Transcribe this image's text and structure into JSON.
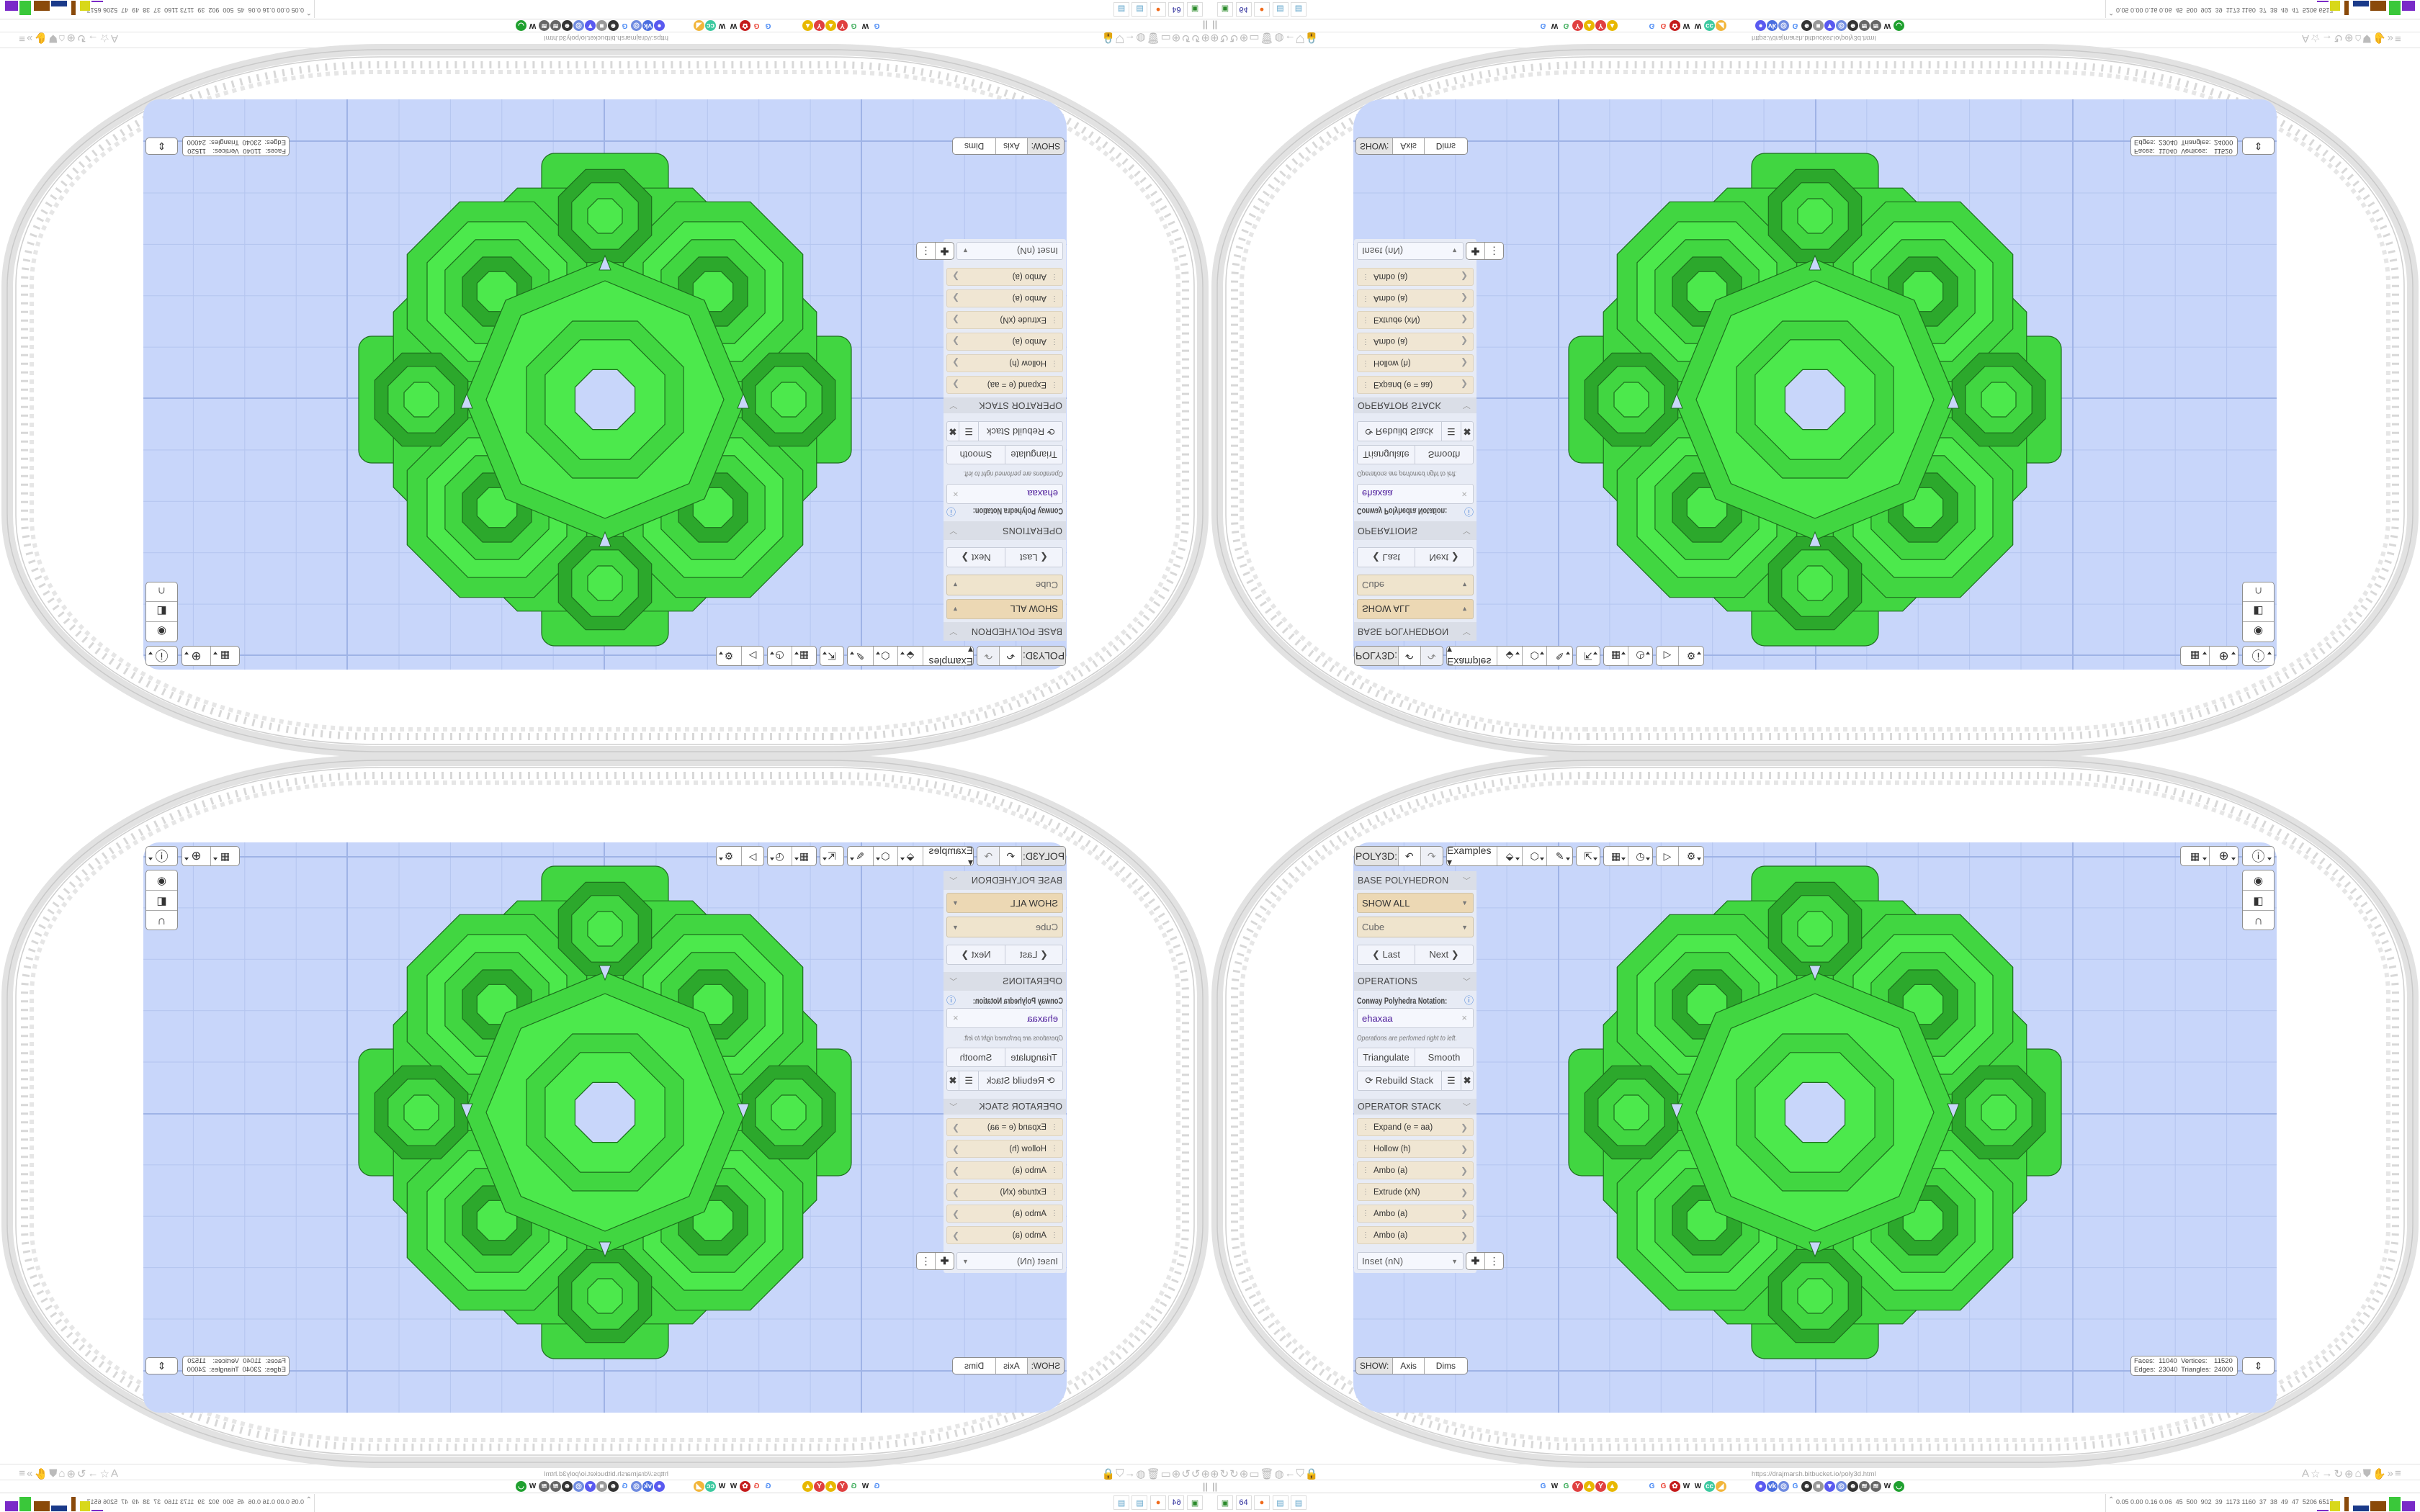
{
  "browser": {
    "url": "https://drajmarsh.bitbucket.io/poly3d.html",
    "nav_icons": [
      "globe-icon",
      "reload-icon",
      "reload-icon",
      "globe-icon",
      "folder-icon",
      "trash-icon",
      "shield-badge-icon",
      "back-arrow-icon",
      "shield-icon",
      "lock-icon"
    ],
    "right_icons": [
      "translate-icon",
      "star-icon",
      "forward-arrow-icon",
      "reload-icon",
      "globe-icon",
      "archive-icon",
      "ublock-icon",
      "extension-icon",
      "overflow-icon",
      "menu-icon"
    ],
    "pause_label": "||",
    "bookmarks": [
      {
        "icon": "google-icon",
        "glyph": "G",
        "color": "#4285f4"
      },
      {
        "icon": "wikipedia-icon",
        "glyph": "W",
        "color": "#222222"
      },
      {
        "icon": "google-icon",
        "glyph": "G",
        "color": "#34a853"
      },
      {
        "icon": "yandex-icon",
        "glyph": "Y",
        "color": "#e04040"
      },
      {
        "icon": "image-icon",
        "glyph": "▲",
        "color": "#e8b800"
      },
      {
        "icon": "yandex-icon",
        "glyph": "Y",
        "color": "#e04040"
      },
      {
        "icon": "image-icon",
        "glyph": "▲",
        "color": "#e8b800"
      },
      {
        "icon": "google-icon",
        "glyph": "G",
        "color": "#4285f4"
      },
      {
        "icon": "google-icon",
        "glyph": "G",
        "color": "#ea4335"
      },
      {
        "icon": "flower-icon",
        "glyph": "✿",
        "color": "#c41a1a"
      },
      {
        "icon": "wikipedia-icon",
        "glyph": "W",
        "color": "#222222"
      },
      {
        "icon": "wikipedia-icon",
        "glyph": "W",
        "color": "#222222"
      },
      {
        "icon": "cc-icon",
        "glyph": "cc",
        "color": "#3cc9a0"
      },
      {
        "icon": "cheese-icon",
        "glyph": "◢",
        "color": "#f2b53a"
      },
      {
        "icon": "chat-icon",
        "glyph": "●",
        "color": "#5a5af0"
      },
      {
        "icon": "vk-icon",
        "glyph": "vk",
        "color": "#4a6ee0"
      },
      {
        "icon": "globe-icon",
        "glyph": "◎",
        "color": "#6f8be0"
      },
      {
        "icon": "google-icon",
        "glyph": "G",
        "color": "#4285f4"
      },
      {
        "icon": "person-icon",
        "glyph": "☻",
        "color": "#333333"
      },
      {
        "icon": "gray-icon",
        "glyph": "■",
        "color": "#999999"
      },
      {
        "icon": "pocket-icon",
        "glyph": "▼",
        "color": "#5a5af0"
      },
      {
        "icon": "globe-icon",
        "glyph": "◎",
        "color": "#6f8be0"
      },
      {
        "icon": "person-icon",
        "glyph": "☻",
        "color": "#333333"
      },
      {
        "icon": "fish-icon",
        "glyph": "≋",
        "color": "#666666"
      },
      {
        "icon": "fish-icon",
        "glyph": "≋",
        "color": "#666666"
      },
      {
        "icon": "wikipedia-icon",
        "glyph": "W",
        "color": "#222222"
      },
      {
        "icon": "green-app-icon",
        "glyph": "◡",
        "color": "#1fa02f"
      }
    ],
    "taskbar_icons": [
      {
        "icon": "drive-icon",
        "glyph": "▣",
        "color": "#2a8a2a"
      },
      {
        "icon": "floppy-64-icon",
        "glyph": "64",
        "color": "#2a2a9a"
      },
      {
        "icon": "firefox-icon",
        "glyph": "●",
        "color": "#f06a1a"
      },
      {
        "icon": "notepad-icon",
        "glyph": "▤",
        "color": "#5aa0c8"
      },
      {
        "icon": "notepad-icon",
        "glyph": "▤",
        "color": "#5aa0c8"
      }
    ],
    "system_stats": "0.05 0.00 0.16 0.06  45  500  902  39  1173 1160  37  38  49  47  5206 6517",
    "graph_colors": [
      "#7a2ac8",
      "#d8d81a",
      "#8a4a0a",
      "#1a3a8a",
      "#8a4a0a",
      "#3ac83a",
      "#a01010"
    ]
  },
  "app": {
    "toolbar": {
      "brand": "POLY3D:",
      "undo_icon": "undo-icon",
      "redo_icon": "redo-icon",
      "examples_label": "Examples ▾",
      "tool_icons": [
        {
          "name": "paint-bucket-icon",
          "glyph": "⬙"
        },
        {
          "name": "cube-view-icon",
          "glyph": "⬡"
        },
        {
          "name": "edit-pencil-icon",
          "glyph": "✎"
        },
        {
          "name": "export-icon",
          "glyph": "⇱"
        },
        {
          "name": "calendar-icon",
          "glyph": "▦"
        },
        {
          "name": "clock-icon",
          "glyph": "◷"
        },
        {
          "name": "play-icon",
          "glyph": "▷"
        },
        {
          "name": "settings-gear-icon",
          "glyph": "⚙"
        }
      ],
      "right_icons": [
        {
          "name": "calendar-clock-icon",
          "glyph": "▦"
        },
        {
          "name": "globe-grid-icon",
          "glyph": "⊕"
        },
        {
          "name": "info-icon",
          "glyph": "ⓘ"
        }
      ],
      "side_icons": [
        {
          "name": "eye-icon",
          "glyph": "◉"
        },
        {
          "name": "slider-toggle-icon",
          "glyph": "◧"
        },
        {
          "name": "magnet-icon",
          "glyph": "∩"
        }
      ]
    },
    "base_polyhedron": {
      "header": "BASE POLYHEDRON",
      "category": "SHOW ALL",
      "shape": "Cube",
      "last_label": "❮ Last",
      "next_label": "Next ❯"
    },
    "operations": {
      "header": "OPERATIONS",
      "notation_label": "Conway Polyhedra Notation:",
      "notation_value": "ehaxaa",
      "hint": "Operations are perfomed right to left.",
      "triangulate_label": "Triangulate",
      "smooth_label": "Smooth",
      "rebuild_label": "⟳ Rebuild Stack"
    },
    "operator_stack": {
      "header": "OPERATOR STACK",
      "items": [
        "Expand (e = aa)",
        "Hollow (h)",
        "Ambo (a)",
        "Extrude (xN)",
        "Ambo (a)",
        "Ambo (a)"
      ],
      "add_select": "Inset (nN)"
    },
    "show": {
      "label": "SHOW:",
      "axis": "Axis",
      "dims": "Dims"
    },
    "stats": {
      "faces_label": "Faces:",
      "faces": "11040",
      "vertices_label": "Vertices:",
      "vertices": "11520",
      "edges_label": "Edges:",
      "edges": "23040",
      "triangles_label": "Triangles:",
      "triangles": "24000"
    },
    "colors": {
      "polyhedron": "#41d641",
      "viewport": "#c8d6fa",
      "stack_item": "#f0e6d3",
      "notation_text": "#4b1a9a"
    }
  }
}
